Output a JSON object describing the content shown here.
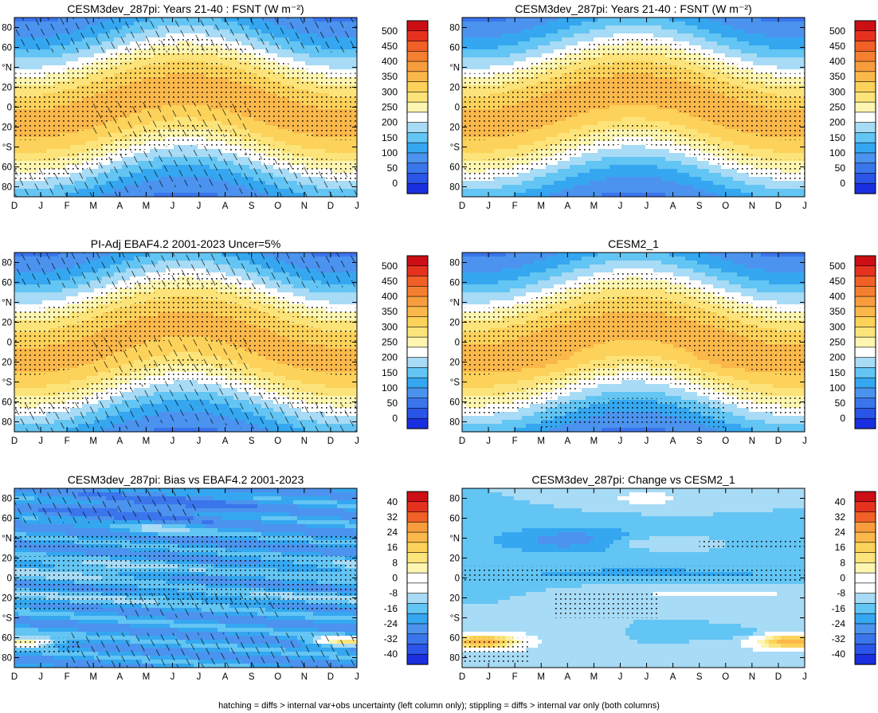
{
  "footer": "hatching = diffs > internal var+obs uncertainty (left column only); stippling = diffs > internal var only (both columns)",
  "months": [
    "D",
    "J",
    "F",
    "M",
    "A",
    "M",
    "J",
    "J",
    "A",
    "S",
    "O",
    "N",
    "D",
    "J"
  ],
  "lat_ticks": [
    "80",
    "60",
    "°N",
    "20",
    "0",
    "20",
    "°S",
    "60",
    "80"
  ],
  "colors": {
    "abs": [
      "#1a2fe0",
      "#2a55e8",
      "#3a75ec",
      "#4b93ee",
      "#35a7f0",
      "#63c5f3",
      "#a8dbf5",
      "#ffffff",
      "#fdf5b0",
      "#fde47a",
      "#fcd25a",
      "#fbb84a",
      "#f79d3e",
      "#f57f30",
      "#f06027",
      "#e5321f",
      "#cc0f14"
    ],
    "diff": [
      "#1a2fe0",
      "#2a55e8",
      "#3a75ec",
      "#4b93ee",
      "#35a7f0",
      "#63c5f3",
      "#a8dbf5",
      "#ffffff",
      "#ffffff",
      "#fdf5b0",
      "#fde47a",
      "#fcd25a",
      "#fbb84a",
      "#f79d3e",
      "#f06027",
      "#e5321f",
      "#cc0f14"
    ]
  },
  "colorbars": {
    "abs_labels": [
      "500",
      "450",
      "400",
      "350",
      "300",
      "250",
      "200",
      "150",
      "100",
      "50",
      "0"
    ],
    "diff_labels": [
      "40",
      "32",
      "24",
      "16",
      "8",
      "0",
      "-8",
      "-16",
      "-24",
      "-32",
      "-40"
    ]
  },
  "chart_data": [
    {
      "id": "p1",
      "type": "heatmap",
      "title": "CESM3dev_287pi: Years 21-40 : FSNT (W m⁻²)",
      "kind": "abs",
      "variant": "model",
      "hatch": true,
      "colorbar_range": [
        0,
        500
      ],
      "x": "month (Dec–Jan)",
      "y": "latitude (90S–90N)"
    },
    {
      "id": "p2",
      "type": "heatmap",
      "title": "CESM3dev_287pi: Years 21-40 : FSNT (W m⁻²)",
      "kind": "abs",
      "variant": "model",
      "hatch": false,
      "colorbar_range": [
        0,
        500
      ],
      "x": "month (Dec–Jan)",
      "y": "latitude (90S–90N)"
    },
    {
      "id": "p3",
      "type": "heatmap",
      "title": "PI-Adj EBAF4.2 2001-2023 Uncer=5%",
      "kind": "abs",
      "variant": "obs",
      "hatch": true,
      "colorbar_range": [
        0,
        500
      ],
      "x": "month (Dec–Jan)",
      "y": "latitude (90S–90N)"
    },
    {
      "id": "p4",
      "type": "heatmap",
      "title": "CESM2_1",
      "kind": "abs",
      "variant": "cesm2",
      "hatch": false,
      "colorbar_range": [
        0,
        500
      ],
      "x": "month (Dec–Jan)",
      "y": "latitude (90S–90N)"
    },
    {
      "id": "p5",
      "type": "heatmap",
      "title": "CESM3dev_287pi: Bias vs EBAF4.2 2001-2023",
      "kind": "diff",
      "variant": "bias",
      "hatch": true,
      "colorbar_range": [
        -40,
        40
      ],
      "x": "month (Dec–Jan)",
      "y": "latitude (90S–90N)"
    },
    {
      "id": "p6",
      "type": "heatmap",
      "title": "CESM3dev_287pi: Change vs CESM2_1",
      "kind": "diff",
      "variant": "change",
      "hatch": false,
      "colorbar_range": [
        -40,
        40
      ],
      "x": "month (Dec–Jan)",
      "y": "latitude (90S–90N)"
    }
  ]
}
